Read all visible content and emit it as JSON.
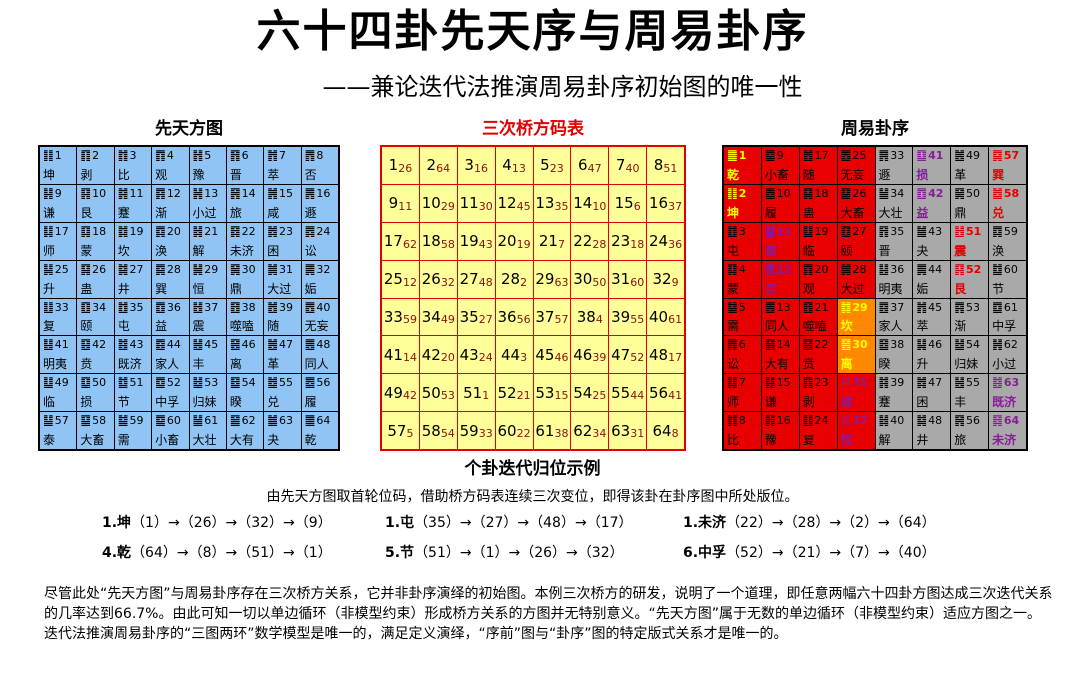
{
  "title": "六十四卦先天序与周易卦序",
  "subtitle": "——兼论迭代法推演周易卦序初始图的唯一性",
  "xiantian": {
    "title": "先天方图",
    "cells": [
      [
        "䷁",
        "1",
        "坤"
      ],
      [
        "䷖",
        "2",
        "剥"
      ],
      [
        "䷇",
        "3",
        "比"
      ],
      [
        "䷓",
        "4",
        "观"
      ],
      [
        "䷏",
        "5",
        "豫"
      ],
      [
        "䷢",
        "6",
        "晋"
      ],
      [
        "䷬",
        "7",
        "萃"
      ],
      [
        "䷋",
        "8",
        "否"
      ],
      [
        "䷎",
        "9",
        "谦"
      ],
      [
        "䷳",
        "10",
        "艮"
      ],
      [
        "䷦",
        "11",
        "蹇"
      ],
      [
        "䷴",
        "12",
        "渐"
      ],
      [
        "䷽",
        "13",
        "小过"
      ],
      [
        "䷷",
        "14",
        "旅"
      ],
      [
        "䷞",
        "15",
        "咸"
      ],
      [
        "䷠",
        "16",
        "遯"
      ],
      [
        "䷆",
        "17",
        "师"
      ],
      [
        "䷃",
        "18",
        "蒙"
      ],
      [
        "䷜",
        "19",
        "坎"
      ],
      [
        "䷺",
        "20",
        "涣"
      ],
      [
        "䷧",
        "21",
        "解"
      ],
      [
        "䷿",
        "22",
        "未济"
      ],
      [
        "䷮",
        "23",
        "困"
      ],
      [
        "䷅",
        "24",
        "讼"
      ],
      [
        "䷭",
        "25",
        "升"
      ],
      [
        "䷑",
        "26",
        "蛊"
      ],
      [
        "䷯",
        "27",
        "井"
      ],
      [
        "䷸",
        "28",
        "巽"
      ],
      [
        "䷟",
        "29",
        "恒"
      ],
      [
        "䷱",
        "30",
        "鼎"
      ],
      [
        "䷛",
        "31",
        "大过"
      ],
      [
        "䷫",
        "32",
        "姤"
      ],
      [
        "䷗",
        "33",
        "复"
      ],
      [
        "䷚",
        "34",
        "颐"
      ],
      [
        "䷂",
        "35",
        "屯"
      ],
      [
        "䷩",
        "36",
        "益"
      ],
      [
        "䷲",
        "37",
        "震"
      ],
      [
        "䷔",
        "38",
        "噬嗑"
      ],
      [
        "䷐",
        "39",
        "随"
      ],
      [
        "䷘",
        "40",
        "无妄"
      ],
      [
        "䷣",
        "41",
        "明夷"
      ],
      [
        "䷕",
        "42",
        "贲"
      ],
      [
        "䷾",
        "43",
        "既济"
      ],
      [
        "䷤",
        "44",
        "家人"
      ],
      [
        "䷶",
        "45",
        "丰"
      ],
      [
        "䷝",
        "46",
        "离"
      ],
      [
        "䷰",
        "47",
        "革"
      ],
      [
        "䷌",
        "48",
        "同人"
      ],
      [
        "䷒",
        "49",
        "临"
      ],
      [
        "䷨",
        "50",
        "损"
      ],
      [
        "䷻",
        "51",
        "节"
      ],
      [
        "䷼",
        "52",
        "中孚"
      ],
      [
        "䷵",
        "53",
        "归妹"
      ],
      [
        "䷥",
        "54",
        "睽"
      ],
      [
        "䷹",
        "55",
        "兑"
      ],
      [
        "䷉",
        "56",
        "履"
      ],
      [
        "䷊",
        "57",
        "泰"
      ],
      [
        "䷙",
        "58",
        "大畜"
      ],
      [
        "䷄",
        "59",
        "需"
      ],
      [
        "䷈",
        "60",
        "小畜"
      ],
      [
        "䷡",
        "61",
        "大壮"
      ],
      [
        "䷍",
        "62",
        "大有"
      ],
      [
        "䷪",
        "63",
        "夬"
      ],
      [
        "䷀",
        "64",
        "乾"
      ]
    ]
  },
  "sanci": {
    "title": "三次桥方码表",
    "cells": [
      [
        "1",
        "26"
      ],
      [
        "2",
        "64"
      ],
      [
        "3",
        "16"
      ],
      [
        "4",
        "13"
      ],
      [
        "5",
        "23"
      ],
      [
        "6",
        "47"
      ],
      [
        "7",
        "40"
      ],
      [
        "8",
        "51"
      ],
      [
        "9",
        "11"
      ],
      [
        "10",
        "29"
      ],
      [
        "11",
        "30"
      ],
      [
        "12",
        "45"
      ],
      [
        "13",
        "35"
      ],
      [
        "14",
        "10"
      ],
      [
        "15",
        "6"
      ],
      [
        "16",
        "37"
      ],
      [
        "17",
        "62"
      ],
      [
        "18",
        "58"
      ],
      [
        "19",
        "43"
      ],
      [
        "20",
        "19"
      ],
      [
        "21",
        "7"
      ],
      [
        "22",
        "28"
      ],
      [
        "23",
        "18"
      ],
      [
        "24",
        "36"
      ],
      [
        "25",
        "12"
      ],
      [
        "26",
        "32"
      ],
      [
        "27",
        "48"
      ],
      [
        "28",
        "2"
      ],
      [
        "29",
        "63"
      ],
      [
        "30",
        "50"
      ],
      [
        "31",
        "60"
      ],
      [
        "32",
        "9"
      ],
      [
        "33",
        "59"
      ],
      [
        "34",
        "49"
      ],
      [
        "35",
        "27"
      ],
      [
        "36",
        "56"
      ],
      [
        "37",
        "57"
      ],
      [
        "38",
        "4"
      ],
      [
        "39",
        "55"
      ],
      [
        "40",
        "61"
      ],
      [
        "41",
        "14"
      ],
      [
        "42",
        "20"
      ],
      [
        "43",
        "24"
      ],
      [
        "44",
        "3"
      ],
      [
        "45",
        "46"
      ],
      [
        "46",
        "39"
      ],
      [
        "47",
        "52"
      ],
      [
        "48",
        "17"
      ],
      [
        "49",
        "42"
      ],
      [
        "50",
        "53"
      ],
      [
        "51",
        "1"
      ],
      [
        "52",
        "21"
      ],
      [
        "53",
        "15"
      ],
      [
        "54",
        "25"
      ],
      [
        "55",
        "44"
      ],
      [
        "56",
        "41"
      ],
      [
        "57",
        "5"
      ],
      [
        "58",
        "54"
      ],
      [
        "59",
        "33"
      ],
      [
        "60",
        "22"
      ],
      [
        "61",
        "38"
      ],
      [
        "62",
        "34"
      ],
      [
        "63",
        "31"
      ],
      [
        "64",
        "8"
      ]
    ]
  },
  "zhouyi": {
    "title": "周易卦序",
    "cells": [
      [
        "䷀",
        "1",
        "乾",
        "r",
        "red"
      ],
      [
        "䷈",
        "9",
        "小畜",
        "r",
        ""
      ],
      [
        "䷐",
        "17",
        "随",
        "r",
        ""
      ],
      [
        "䷘",
        "25",
        "无妄",
        "r",
        ""
      ],
      [
        "䷠",
        "33",
        "遯",
        "g",
        ""
      ],
      [
        "䷨",
        "41",
        "损",
        "g",
        "purple"
      ],
      [
        "䷰",
        "49",
        "革",
        "g",
        ""
      ],
      [
        "䷸",
        "57",
        "巽",
        "g",
        "redtext"
      ],
      [
        "䷁",
        "2",
        "坤",
        "r",
        "red"
      ],
      [
        "䷉",
        "10",
        "履",
        "r",
        ""
      ],
      [
        "䷑",
        "18",
        "蛊",
        "r",
        ""
      ],
      [
        "䷙",
        "26",
        "大畜",
        "r",
        ""
      ],
      [
        "䷡",
        "34",
        "大壮",
        "g",
        ""
      ],
      [
        "䷩",
        "42",
        "益",
        "g",
        "purple"
      ],
      [
        "䷱",
        "50",
        "鼎",
        "g",
        ""
      ],
      [
        "䷹",
        "58",
        "兑",
        "g",
        "redtext"
      ],
      [
        "䷂",
        "3",
        "屯",
        "r",
        ""
      ],
      [
        "䷊",
        "11",
        "泰",
        "r",
        "purple"
      ],
      [
        "䷒",
        "19",
        "临",
        "r",
        ""
      ],
      [
        "䷚",
        "27",
        "颐",
        "r",
        ""
      ],
      [
        "䷢",
        "35",
        "晋",
        "g",
        ""
      ],
      [
        "䷪",
        "43",
        "夬",
        "g",
        ""
      ],
      [
        "䷲",
        "51",
        "震",
        "g",
        "redtext"
      ],
      [
        "䷺",
        "59",
        "涣",
        "g",
        ""
      ],
      [
        "䷃",
        "4",
        "蒙",
        "r",
        ""
      ],
      [
        "䷋",
        "12",
        "否",
        "r",
        "purple"
      ],
      [
        "䷓",
        "20",
        "观",
        "r",
        ""
      ],
      [
        "䷛",
        "28",
        "大过",
        "r",
        ""
      ],
      [
        "䷣",
        "36",
        "明夷",
        "g",
        ""
      ],
      [
        "䷫",
        "44",
        "姤",
        "g",
        ""
      ],
      [
        "䷳",
        "52",
        "艮",
        "g",
        "redtext"
      ],
      [
        "䷻",
        "60",
        "节",
        "g",
        ""
      ],
      [
        "䷄",
        "5",
        "需",
        "r",
        ""
      ],
      [
        "䷌",
        "13",
        "同人",
        "r",
        ""
      ],
      [
        "䷔",
        "21",
        "噬嗑",
        "r",
        ""
      ],
      [
        "䷜",
        "29",
        "坎",
        "r",
        "orange"
      ],
      [
        "䷤",
        "37",
        "家人",
        "g",
        ""
      ],
      [
        "䷬",
        "45",
        "萃",
        "g",
        ""
      ],
      [
        "䷴",
        "53",
        "渐",
        "g",
        ""
      ],
      [
        "䷼",
        "61",
        "中孚",
        "g",
        ""
      ],
      [
        "䷅",
        "6",
        "讼",
        "r",
        ""
      ],
      [
        "䷍",
        "14",
        "大有",
        "r",
        ""
      ],
      [
        "䷕",
        "22",
        "贲",
        "r",
        ""
      ],
      [
        "䷝",
        "30",
        "离",
        "r",
        "orange"
      ],
      [
        "䷥",
        "38",
        "睽",
        "g",
        ""
      ],
      [
        "䷭",
        "46",
        "升",
        "g",
        ""
      ],
      [
        "䷵",
        "54",
        "归妹",
        "g",
        ""
      ],
      [
        "䷽",
        "62",
        "小过",
        "g",
        ""
      ],
      [
        "䷆",
        "7",
        "师",
        "r",
        ""
      ],
      [
        "䷎",
        "15",
        "谦",
        "r",
        ""
      ],
      [
        "䷖",
        "23",
        "剥",
        "r",
        ""
      ],
      [
        "䷞",
        "31",
        "咸",
        "r",
        "purple"
      ],
      [
        "䷦",
        "39",
        "蹇",
        "g",
        ""
      ],
      [
        "䷮",
        "47",
        "困",
        "g",
        ""
      ],
      [
        "䷶",
        "55",
        "丰",
        "g",
        ""
      ],
      [
        "䷾",
        "63",
        "既济",
        "g",
        "purple"
      ],
      [
        "䷇",
        "8",
        "比",
        "r",
        ""
      ],
      [
        "䷏",
        "16",
        "豫",
        "r",
        ""
      ],
      [
        "䷗",
        "24",
        "复",
        "r",
        ""
      ],
      [
        "䷟",
        "32",
        "恒",
        "r",
        "purple"
      ],
      [
        "䷧",
        "40",
        "解",
        "g",
        ""
      ],
      [
        "䷯",
        "48",
        "井",
        "g",
        ""
      ],
      [
        "䷷",
        "56",
        "旅",
        "g",
        ""
      ],
      [
        "䷿",
        "64",
        "未济",
        "g",
        "purple"
      ]
    ]
  },
  "examples": {
    "title": "个卦迭代归位示例",
    "description": "由先天方图取首轮位码，借助桥方码表连续三次变位，即得该卦在卦序图中所处版位。",
    "items": [
      {
        "label": "1.坤",
        "seq": "（1）→（26）→（32）→（9）"
      },
      {
        "label": "1.屯",
        "seq": "（35）→（27）→（48）→（17）"
      },
      {
        "label": "1.未济",
        "seq": "（22）→（28）→（2）→（64）"
      },
      {
        "label": "4.乾",
        "seq": "（64）→（8）→（51）→（1）"
      },
      {
        "label": "5.节",
        "seq": "（51）→（1）→（26）→（32）"
      },
      {
        "label": "6.中孚",
        "seq": "（52）→（21）→（7）→（40）"
      }
    ]
  },
  "notes": [
    "尽管此处“先天方图”与周易卦序存在三次桥方关系，它并非卦序演绎的初始图。本例三次桥方的研发，说明了一个道理，即任意两幅六十四卦方图达成三次迭代关系的几率达到66.7%。由此可知一切以单边循环（非模型约束）形成桥方关系的方图并无特别意义。“先天方图”属于无数的单边循环（非模型约束）适应方图之一。",
    "迭代法推演周易卦序的“三图两环”数学模型是唯一的，满足定义演绎，“序前”图与“卦序”图的特定版式关系才是唯一的。"
  ],
  "colors": {
    "xiantian_bg": "#90c4f4",
    "sanci_bg": "#ffff99",
    "sanci_border": "#e00000",
    "zhouyi_red": "#e80000",
    "zhouyi_gray": "#a9a9a9",
    "highlight_purple": "#8b1a9b",
    "highlight_orange": "#ff8800"
  }
}
